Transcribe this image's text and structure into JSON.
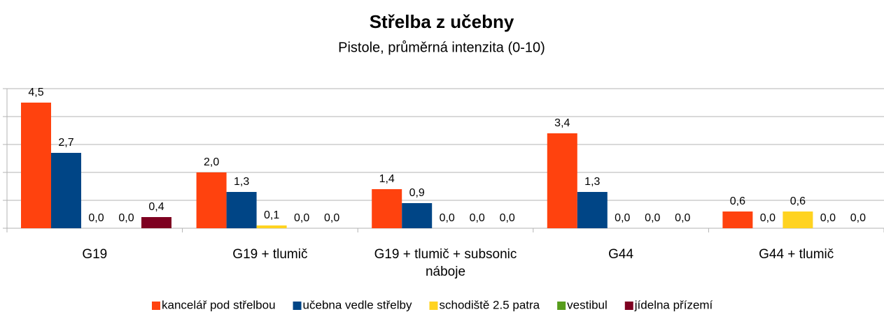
{
  "chart_data": {
    "type": "bar",
    "title": "Střelba z učebny",
    "subtitle": "Pistole, průměrná intenzita (0-10)",
    "categories": [
      "G19",
      "G19 + tlumič",
      "G19 + tlumič + subsonic náboje",
      "G44",
      "G44 + tlumič"
    ],
    "series": [
      {
        "name": "kancelář pod střelbou",
        "color": "#ff420e",
        "values": [
          4.5,
          2.0,
          1.4,
          3.4,
          0.6
        ],
        "value_labels": [
          "4,5",
          "2,0",
          "1,4",
          "3,4",
          "0,6"
        ]
      },
      {
        "name": "učebna vedle střelby",
        "color": "#004586",
        "values": [
          2.7,
          1.3,
          0.9,
          1.3,
          0.0
        ],
        "value_labels": [
          "2,7",
          "1,3",
          "0,9",
          "1,3",
          "0,0"
        ]
      },
      {
        "name": "schodiště 2.5 patra",
        "color": "#ffd320",
        "values": [
          0.0,
          0.1,
          0.0,
          0.0,
          0.6
        ],
        "value_labels": [
          "0,0",
          "0,1",
          "0,0",
          "0,0",
          "0,6"
        ]
      },
      {
        "name": "vestibul",
        "color": "#579d1c",
        "values": [
          0.0,
          0.0,
          0.0,
          0.0,
          0.0
        ],
        "value_labels": [
          "0,0",
          "0,0",
          "0,0",
          "0,0",
          "0,0"
        ]
      },
      {
        "name": "jídelna přízemí",
        "color": "#7e0021",
        "values": [
          0.4,
          0.0,
          0.0,
          0.0,
          0.0
        ],
        "value_labels": [
          "0,4",
          "0,0",
          "0,0",
          "0,0",
          "0,0"
        ]
      }
    ],
    "ylim": [
      0,
      5
    ],
    "yticks": [
      0,
      1,
      2,
      3,
      4,
      5
    ],
    "grid": true,
    "legend": "bottom"
  }
}
